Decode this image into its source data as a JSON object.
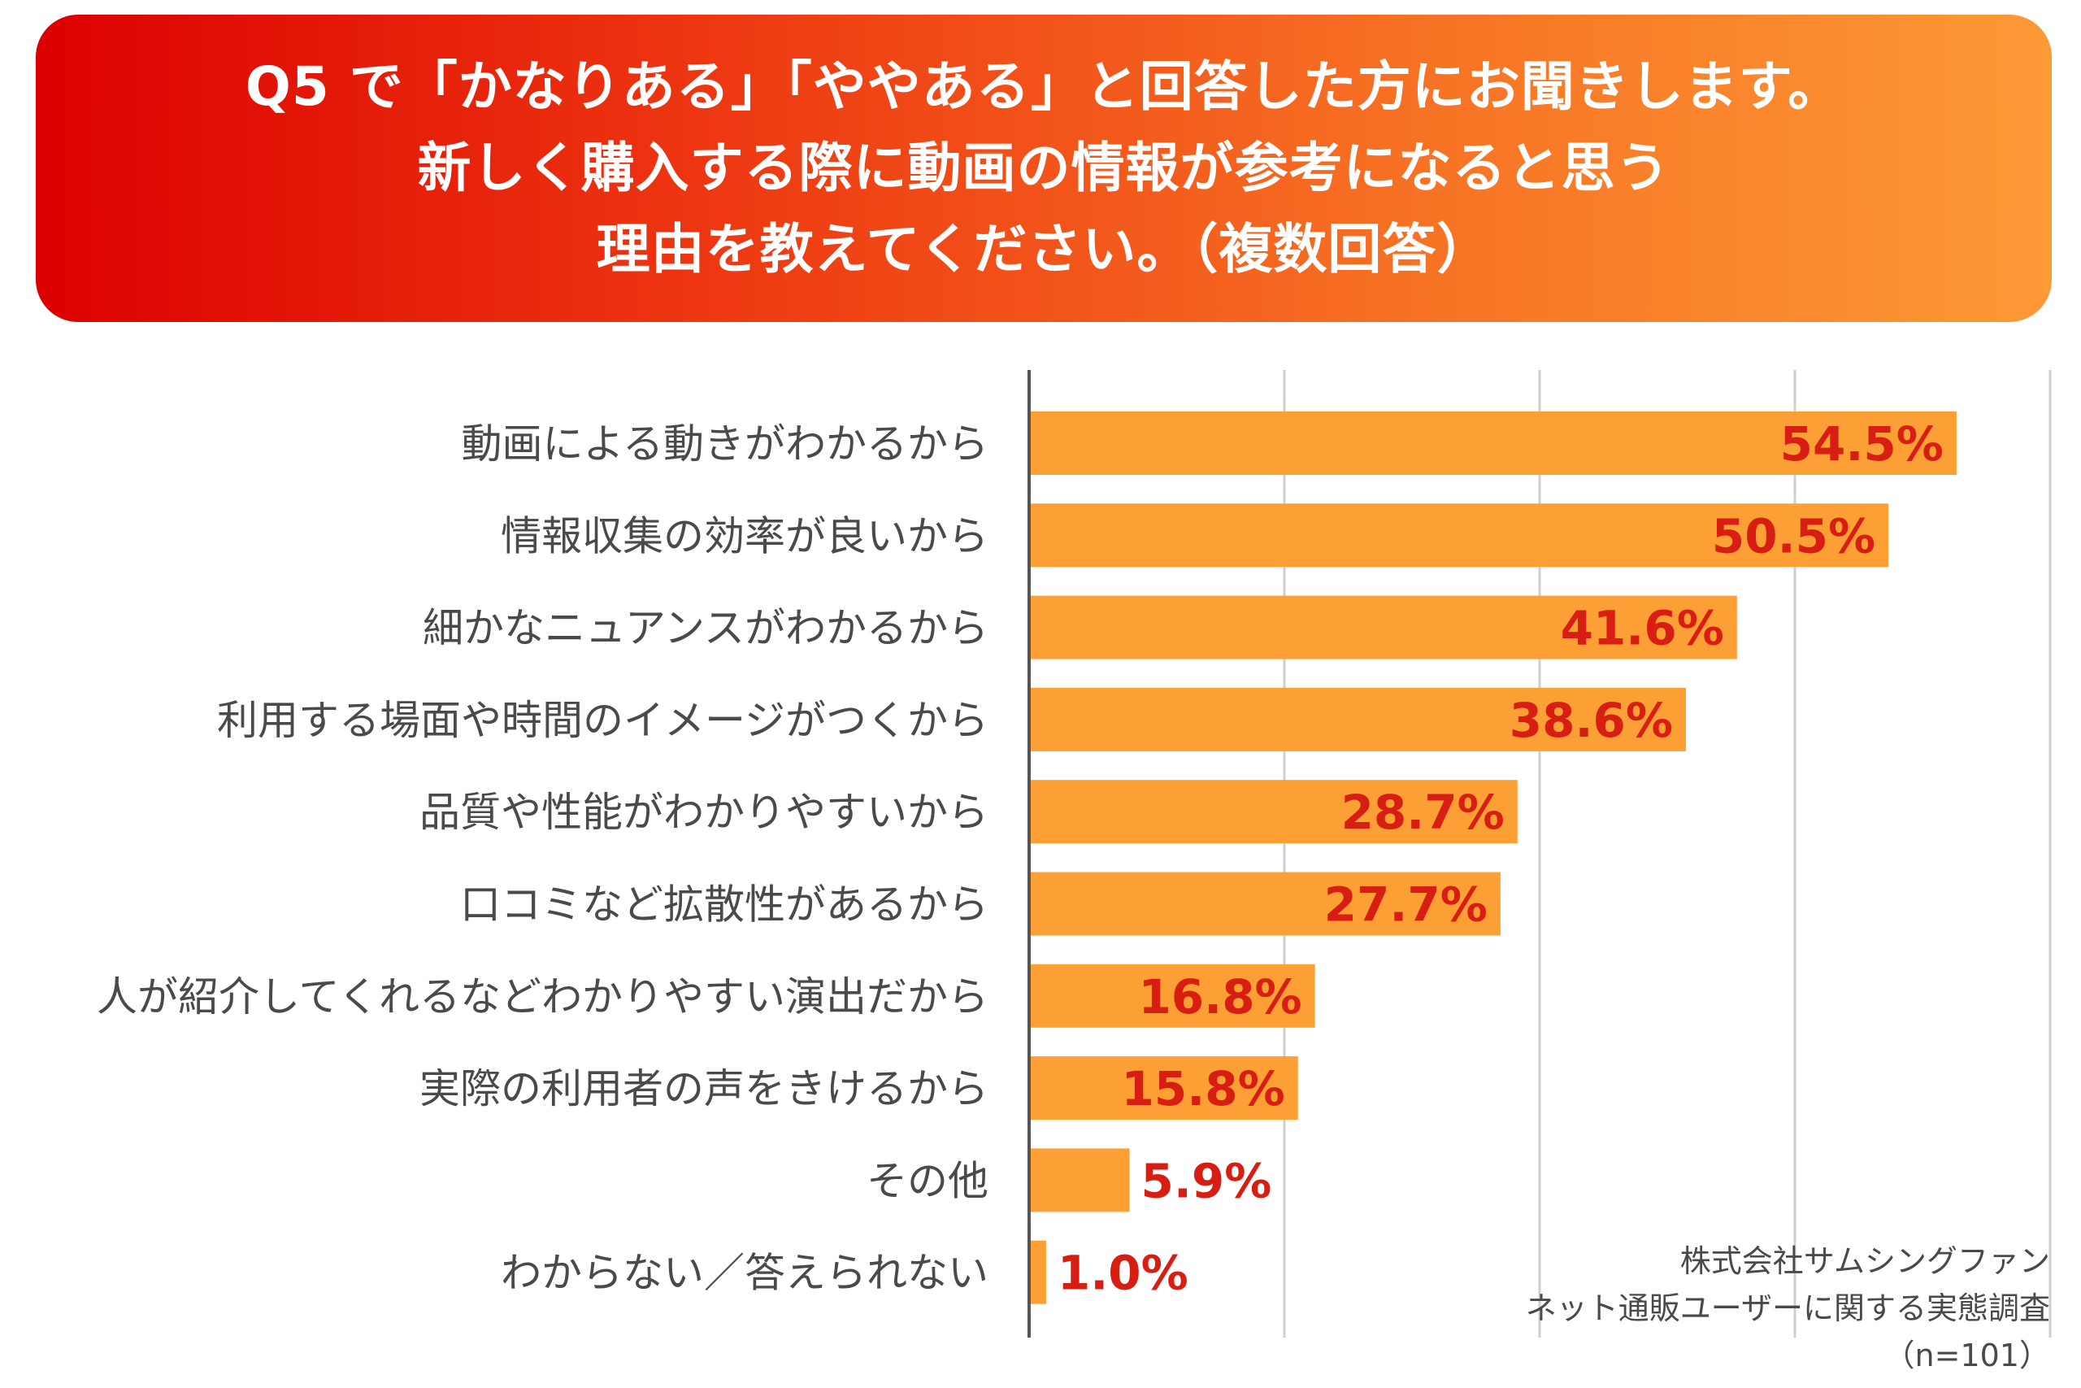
{
  "header": {
    "title_lines": [
      "Q5 で「かなりある」「ややある」と回答した方にお聞きします。",
      "新しく購入する際に動画の情報が参考になると思う",
      "理由を教えてください。（複数回答）"
    ]
  },
  "colors": {
    "bar": "#fca035",
    "value_label": "#d81e12",
    "axis": "#555555",
    "grid": "#cfcfcf",
    "header_gradient_start": "#dc0000",
    "header_gradient_end": "#fc9a36"
  },
  "source": {
    "lines": [
      "株式会社サムシングファン",
      "ネット通販ユーザーに関する実態調査",
      "（n=101）"
    ]
  },
  "chart_data": {
    "type": "bar",
    "orientation": "horizontal",
    "title": "Q5 で「かなりある」「ややある」と回答した方にお聞きします。新しく購入する際に動画の情報が参考になると思う理由を教えてください。（複数回答）",
    "categories": [
      "動画による動きがわかるから",
      "情報収集の効率が良いから",
      "細かなニュアンスがわかるから",
      "利用する場面や時間のイメージがつくから",
      "品質や性能がわかりやすいから",
      "口コミなど拡散性があるから",
      "人が紹介してくれるなどわかりやすい演出だから",
      "実際の利用者の声をきけるから",
      "その他",
      "わからない／答えられない"
    ],
    "values": [
      54.5,
      50.5,
      41.6,
      38.6,
      28.7,
      27.7,
      16.8,
      15.8,
      5.9,
      1.0
    ],
    "value_labels": [
      "54.5%",
      "50.5%",
      "41.6%",
      "38.6%",
      "28.7%",
      "27.7%",
      "16.8%",
      "15.8%",
      "5.9%",
      "1.0%"
    ],
    "unit": "%",
    "xlim": [
      0,
      60
    ],
    "grid_values": [
      15,
      30,
      45,
      60
    ],
    "grid": true,
    "legend": "none",
    "xlabel": "",
    "ylabel": ""
  }
}
